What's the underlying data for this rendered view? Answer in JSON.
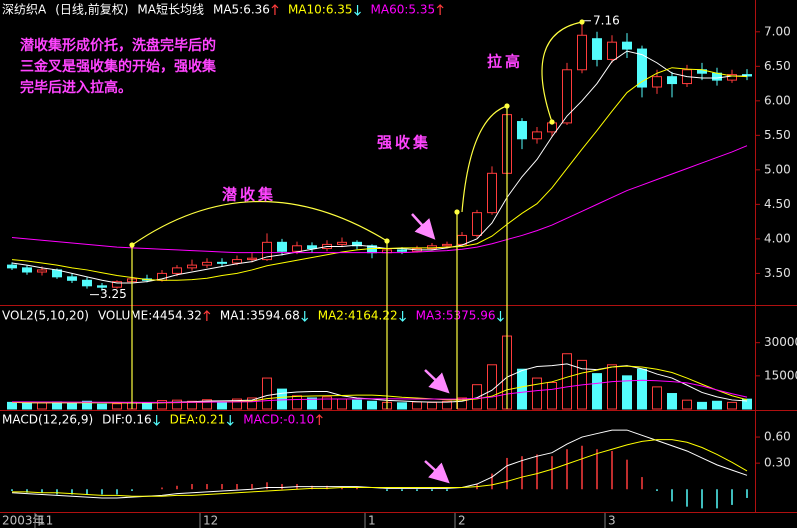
{
  "chart_data": [
    {
      "type": "candlestick",
      "title": "深纺织A",
      "subtitle": "(日线,前复权)",
      "indicator": "MA短长均线",
      "categories": [
        "2003年",
        null,
        "11",
        null,
        null,
        null,
        null,
        null,
        null,
        null,
        null,
        null,
        null,
        "12",
        null,
        null,
        null,
        null,
        null,
        null,
        null,
        null,
        null,
        null,
        "1",
        null,
        null,
        null,
        null,
        null,
        "2",
        null,
        null,
        null,
        null,
        null,
        null,
        null,
        null,
        null,
        "3",
        null,
        null,
        null,
        null,
        null,
        null,
        null,
        null,
        null
      ],
      "open": [
        3.62,
        3.58,
        3.52,
        3.55,
        3.45,
        3.4,
        3.32,
        3.3,
        3.38,
        3.42,
        3.4,
        3.5,
        3.58,
        3.62,
        3.66,
        3.65,
        3.7,
        3.7,
        3.95,
        3.82,
        3.9,
        3.86,
        3.92,
        3.95,
        3.9,
        3.8,
        3.84,
        3.82,
        3.86,
        3.9,
        3.92,
        4.05,
        4.38,
        4.95,
        5.7,
        5.45,
        5.55,
        5.68,
        6.45,
        6.9,
        6.6,
        6.85,
        6.75,
        6.2,
        6.35,
        6.25,
        6.45,
        6.4,
        6.3,
        6.38
      ],
      "high": [
        3.66,
        3.62,
        3.6,
        3.57,
        3.5,
        3.44,
        3.36,
        3.4,
        3.46,
        3.48,
        3.55,
        3.62,
        3.7,
        3.72,
        3.72,
        3.76,
        3.8,
        4.08,
        4.0,
        3.96,
        3.95,
        3.98,
        4.02,
        3.98,
        3.92,
        3.88,
        3.88,
        3.9,
        3.94,
        3.96,
        4.1,
        4.42,
        5.05,
        5.9,
        5.75,
        5.62,
        5.72,
        6.55,
        7.16,
        7.0,
        6.95,
        6.98,
        6.8,
        6.45,
        6.42,
        6.52,
        6.55,
        6.48,
        6.45,
        6.46
      ],
      "low": [
        3.55,
        3.48,
        3.47,
        3.42,
        3.36,
        3.28,
        3.25,
        3.28,
        3.35,
        3.37,
        3.38,
        3.46,
        3.54,
        3.58,
        3.6,
        3.62,
        3.66,
        3.68,
        3.76,
        3.78,
        3.8,
        3.82,
        3.88,
        3.85,
        3.72,
        3.76,
        3.78,
        3.8,
        3.84,
        3.86,
        3.9,
        4.02,
        4.35,
        4.9,
        5.3,
        5.38,
        5.48,
        5.65,
        6.4,
        6.5,
        6.55,
        6.62,
        6.05,
        6.1,
        6.05,
        6.2,
        6.3,
        6.22,
        6.26,
        6.3
      ],
      "close": [
        3.58,
        3.52,
        3.55,
        3.45,
        3.4,
        3.32,
        3.3,
        3.38,
        3.42,
        3.4,
        3.5,
        3.58,
        3.62,
        3.66,
        3.65,
        3.7,
        3.72,
        3.95,
        3.82,
        3.9,
        3.86,
        3.92,
        3.95,
        3.9,
        3.8,
        3.84,
        3.82,
        3.86,
        3.9,
        3.92,
        4.05,
        4.38,
        4.95,
        5.8,
        5.45,
        5.55,
        5.68,
        6.45,
        6.95,
        6.6,
        6.85,
        6.75,
        6.2,
        6.35,
        6.25,
        6.45,
        6.4,
        6.3,
        6.38,
        6.36
      ],
      "up_color": "#ff3c3c",
      "down_color": "#54fcfc",
      "series": [
        {
          "name": "MA5:6.36",
          "color": "#ffffff",
          "values": [
            3.65,
            3.62,
            3.58,
            3.55,
            3.5,
            3.45,
            3.4,
            3.36,
            3.36,
            3.38,
            3.42,
            3.48,
            3.52,
            3.56,
            3.6,
            3.64,
            3.67,
            3.74,
            3.77,
            3.81,
            3.85,
            3.89,
            3.89,
            3.91,
            3.89,
            3.86,
            3.86,
            3.84,
            3.84,
            3.87,
            3.91,
            4.0,
            4.23,
            4.6,
            4.9,
            5.15,
            5.48,
            5.78,
            6.0,
            6.25,
            6.57,
            6.72,
            6.67,
            6.55,
            6.4,
            6.35,
            6.33,
            6.33,
            6.36,
            6.36
          ]
        },
        {
          "name": "MA10:6.35",
          "color": "#ffff00",
          "values": [
            3.7,
            3.68,
            3.65,
            3.62,
            3.58,
            3.55,
            3.51,
            3.47,
            3.44,
            3.41,
            3.4,
            3.4,
            3.41,
            3.43,
            3.47,
            3.5,
            3.55,
            3.61,
            3.65,
            3.69,
            3.73,
            3.77,
            3.81,
            3.84,
            3.86,
            3.86,
            3.87,
            3.87,
            3.87,
            3.88,
            3.89,
            3.93,
            4.04,
            4.21,
            4.37,
            4.51,
            4.74,
            5.02,
            5.3,
            5.57,
            5.85,
            6.12,
            6.28,
            6.4,
            6.48,
            6.46,
            6.45,
            6.4,
            6.36,
            6.35
          ]
        },
        {
          "name": "MA60:5.35",
          "color": "#ff00ff",
          "values": [
            4.02,
            4.0,
            3.98,
            3.96,
            3.94,
            3.92,
            3.9,
            3.88,
            3.87,
            3.86,
            3.85,
            3.84,
            3.83,
            3.82,
            3.81,
            3.8,
            3.8,
            3.8,
            3.8,
            3.8,
            3.8,
            3.8,
            3.8,
            3.8,
            3.8,
            3.8,
            3.8,
            3.81,
            3.82,
            3.83,
            3.85,
            3.88,
            3.93,
            3.99,
            4.05,
            4.12,
            4.2,
            4.3,
            4.4,
            4.5,
            4.6,
            4.7,
            4.78,
            4.86,
            4.94,
            5.02,
            5.1,
            5.18,
            5.26,
            5.35
          ]
        }
      ],
      "high_marker": 7.16,
      "low_marker": 3.25,
      "note": [
        "潜收集形成价托，洗盘完毕后的",
        "三金叉是强收集的开始，强收集",
        "完毕后进入拉高。"
      ],
      "annotations": [
        "潜收集",
        "强收集",
        "拉高"
      ],
      "ylim": [
        3.1,
        7.2
      ],
      "yticks": [
        {
          "value": 3.5,
          "label": "3.50"
        },
        {
          "value": 4,
          "label": "4.00"
        },
        {
          "value": 4.5,
          "label": "4.50"
        },
        {
          "value": 5,
          "label": "5.00"
        },
        {
          "value": 5.5,
          "label": "5.50"
        },
        {
          "value": 6,
          "label": "6.00"
        },
        {
          "value": 6.5,
          "label": "6.50"
        },
        {
          "value": 7,
          "label": "7.00"
        }
      ]
    },
    {
      "type": "volume_bar",
      "title": "VOL2(5,10,20)",
      "subtitle": "VOLUME:4454.32",
      "values": [
        3000,
        2500,
        2800,
        3200,
        2600,
        3500,
        2200,
        2400,
        3000,
        2500,
        3800,
        4000,
        3500,
        4200,
        3000,
        4500,
        5000,
        14000,
        9000,
        6000,
        5000,
        5500,
        4500,
        4000,
        3500,
        3000,
        2800,
        3200,
        3000,
        3500,
        5000,
        11000,
        20000,
        33000,
        18000,
        14000,
        12000,
        25000,
        22000,
        16000,
        20000,
        15000,
        18000,
        10000,
        7000,
        4000,
        3000,
        3500,
        3000,
        4454.32
      ],
      "series": [
        {
          "name": "MA1:3594.68",
          "color": "#ffffff",
          "values": [
            3000,
            2800,
            2800,
            2900,
            2800,
            2900,
            2900,
            2800,
            2700,
            2700,
            2900,
            3100,
            3300,
            3600,
            3700,
            3800,
            4000,
            6100,
            7100,
            7700,
            7900,
            7900,
            6000,
            5000,
            4500,
            3900,
            3600,
            3300,
            3100,
            3100,
            3500,
            5100,
            8500,
            14400,
            17400,
            19200,
            19600,
            20400,
            18200,
            17800,
            19000,
            19600,
            18200,
            15800,
            14000,
            10800,
            7500,
            5500,
            4100,
            3594.68
          ]
        },
        {
          "name": "MA2:4164.22",
          "color": "#ffff00",
          "values": [
            3000,
            2900,
            2850,
            2900,
            2850,
            2850,
            2800,
            2750,
            2800,
            2800,
            2800,
            2900,
            3000,
            3100,
            3200,
            3400,
            3600,
            4700,
            5300,
            5700,
            5900,
            6000,
            6100,
            6300,
            6300,
            5900,
            5300,
            5000,
            4600,
            4200,
            4000,
            4600,
            5800,
            8700,
            10000,
            11200,
            12300,
            14400,
            16300,
            17600,
            19000,
            19400,
            19000,
            18000,
            16500,
            14000,
            11200,
            8500,
            6000,
            4164.22
          ]
        },
        {
          "name": "MA3:5375.96",
          "color": "#ff00ff",
          "values": [
            3200,
            3200,
            3150,
            3150,
            3100,
            3100,
            3050,
            3050,
            3000,
            3000,
            3000,
            3000,
            3050,
            3100,
            3150,
            3200,
            3300,
            3800,
            4100,
            4300,
            4400,
            4500,
            4550,
            4600,
            4650,
            4650,
            4600,
            4550,
            4500,
            4450,
            4500,
            4800,
            5400,
            6800,
            7600,
            8300,
            8900,
            10000,
            10900,
            11600,
            12400,
            12700,
            13000,
            12800,
            12400,
            11800,
            10400,
            8600,
            6900,
            5375.96
          ]
        }
      ],
      "ylim": [
        0,
        38000
      ],
      "yticks": [
        15000,
        30000
      ]
    },
    {
      "type": "macd",
      "title": "MACD(12,26,9)",
      "name": "MACD:-0.10",
      "color": "#ff00ff",
      "up_color": "#ff3c3c",
      "down_color": "#54fcfc",
      "values": [
        -0.02,
        -0.04,
        -0.04,
        -0.06,
        -0.06,
        -0.06,
        -0.06,
        -0.06,
        -0.02,
        0,
        0.02,
        0.04,
        0.06,
        0.06,
        0.06,
        0.06,
        0.06,
        0.08,
        0.06,
        0.06,
        0.04,
        0.04,
        0.02,
        0.02,
        0,
        -0.02,
        -0.02,
        -0.02,
        -0.02,
        -0.02,
        0,
        0.06,
        0.18,
        0.36,
        0.38,
        0.4,
        0.38,
        0.46,
        0.5,
        0.46,
        0.44,
        0.34,
        0.14,
        -0.02,
        -0.14,
        -0.2,
        -0.22,
        -0.22,
        -0.18,
        -0.1
      ],
      "series": [
        {
          "name": "DIF:0.16",
          "color": "#ffffff",
          "values": [
            -0.04,
            -0.05,
            -0.06,
            -0.07,
            -0.08,
            -0.09,
            -0.1,
            -0.1,
            -0.09,
            -0.08,
            -0.07,
            -0.05,
            -0.04,
            -0.03,
            -0.02,
            -0.01,
            0,
            0.02,
            0.02,
            0.03,
            0.03,
            0.03,
            0.03,
            0.03,
            0.02,
            0.01,
            0.01,
            0.01,
            0.01,
            0.01,
            0.02,
            0.06,
            0.14,
            0.27,
            0.33,
            0.38,
            0.42,
            0.52,
            0.6,
            0.64,
            0.68,
            0.68,
            0.62,
            0.56,
            0.5,
            0.44,
            0.36,
            0.28,
            0.22,
            0.16
          ]
        },
        {
          "name": "DEA:0.21",
          "color": "#ffff00",
          "values": [
            -0.03,
            -0.03,
            -0.04,
            -0.04,
            -0.05,
            -0.06,
            -0.07,
            -0.07,
            -0.08,
            -0.08,
            -0.08,
            -0.07,
            -0.07,
            -0.06,
            -0.05,
            -0.04,
            -0.03,
            -0.02,
            -0.01,
            0,
            0.01,
            0.01,
            0.02,
            0.02,
            0.02,
            0.02,
            0.02,
            0.02,
            0.02,
            0.02,
            0.02,
            0.03,
            0.05,
            0.09,
            0.14,
            0.18,
            0.23,
            0.29,
            0.35,
            0.41,
            0.46,
            0.51,
            0.55,
            0.57,
            0.57,
            0.54,
            0.48,
            0.4,
            0.31,
            0.21
          ]
        }
      ],
      "ylim": [
        -0.25,
        0.75
      ],
      "yticks": [
        {
          "value": 0.3,
          "label": "0.30"
        },
        {
          "value": 0.6,
          "label": "0.60"
        }
      ]
    }
  ]
}
